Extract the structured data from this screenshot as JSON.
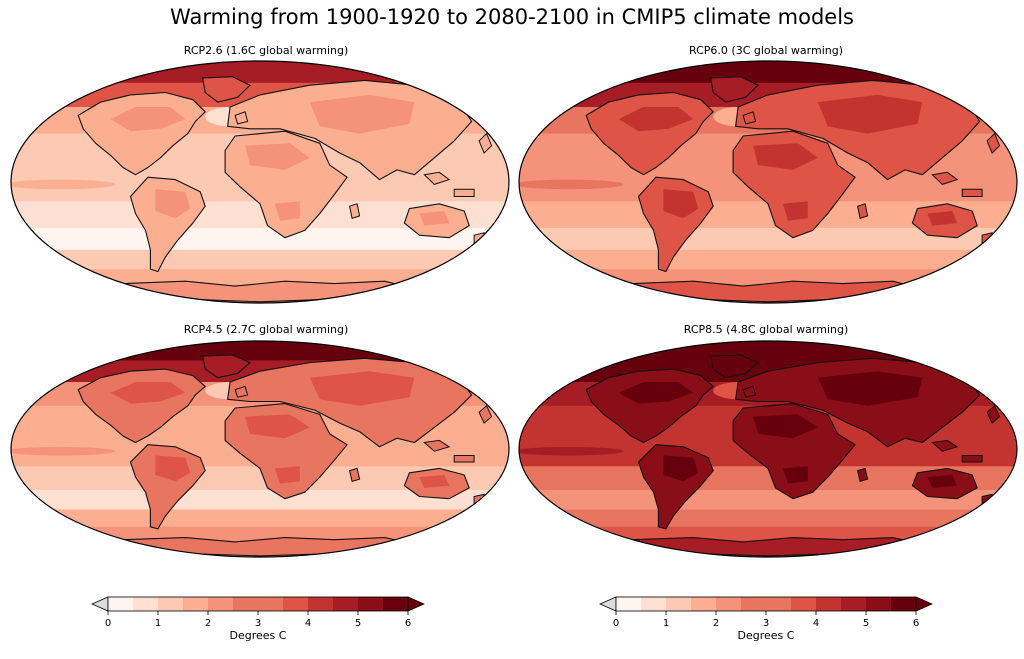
{
  "title": "Warming from 1900-1920 to 2080-2100 in CMIP5 climate models",
  "colors": [
    "#fff5f0",
    "#fee0d2",
    "#fcc9b3",
    "#fcae91",
    "#f4937a",
    "#e87560",
    "#de5446",
    "#c33431",
    "#a71d25",
    "#8a0e18",
    "#67000d"
  ],
  "colorbar": {
    "label": "Degrees C",
    "ticks": [
      "0",
      "1",
      "2",
      "3",
      "4",
      "5",
      "6"
    ],
    "levels_per_unit": 2,
    "min": 0,
    "max": 6
  },
  "panels": [
    {
      "title": "RCP2.6 (1.6C global warming)",
      "global_warming_c": 1.6,
      "levels": {
        "ocean_n": 2,
        "ocean_eq": 2,
        "ocean_s": 1,
        "ocean_far_s": 0,
        "band_s": 2,
        "antarctic": 4,
        "land": 3,
        "land_hot": 4,
        "arctic": 6,
        "polar": 8
      }
    },
    {
      "title": "RCP6.0 (3C global warming)",
      "global_warming_c": 3,
      "levels": {
        "ocean_n": 4,
        "ocean_eq": 4,
        "ocean_s": 3,
        "ocean_far_s": 2,
        "band_s": 3,
        "antarctic": 6,
        "land": 6,
        "land_hot": 7,
        "arctic": 8,
        "polar": 10
      }
    },
    {
      "title": "RCP4.5 (2.7C global warming)",
      "global_warming_c": 2.7,
      "levels": {
        "ocean_n": 3,
        "ocean_eq": 3,
        "ocean_s": 2,
        "ocean_far_s": 1,
        "band_s": 3,
        "antarctic": 5,
        "land": 5,
        "land_hot": 6,
        "arctic": 8,
        "polar": 10
      }
    },
    {
      "title": "RCP8.5 (4.8C global warming)",
      "global_warming_c": 4.8,
      "levels": {
        "ocean_n": 7,
        "ocean_eq": 7,
        "ocean_s": 5,
        "ocean_far_s": 4,
        "band_s": 5,
        "antarctic": 8,
        "land": 9,
        "land_hot": 10,
        "arctic": 10,
        "polar": 10
      }
    }
  ]
}
